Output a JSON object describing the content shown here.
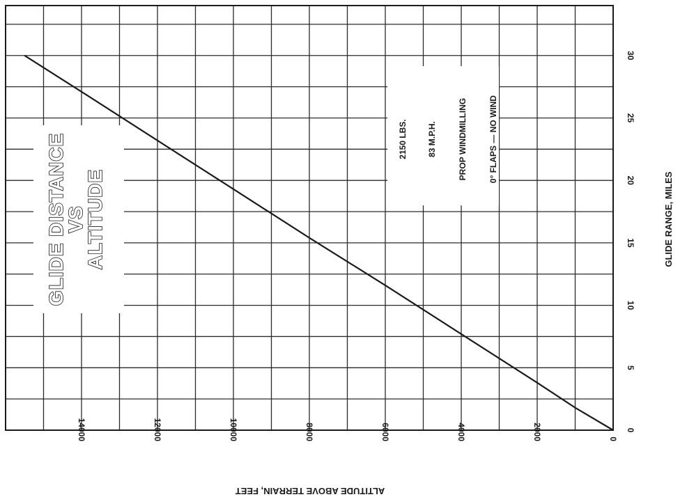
{
  "chart_data": {
    "type": "line",
    "title_lines": [
      "GLIDE DISTANCE",
      "VS",
      "ALTITUDE"
    ],
    "xlabel": "ALTITUDE ABOVE TERRAIN, FEET",
    "ylabel": "GLIDE RANGE, MILES",
    "xlim": [
      0,
      16000
    ],
    "ylim": [
      0,
      34
    ],
    "x_ticks": [
      0,
      2000,
      4000,
      6000,
      8000,
      10000,
      12000,
      14000
    ],
    "y_ticks": [
      0,
      5,
      10,
      15,
      20,
      25,
      30
    ],
    "grid": true,
    "conditions": [
      "2150 LBS.",
      "83 M.P.H.",
      "PROP WINDMILLING",
      "0° FLAPS — NO WIND"
    ],
    "series": [
      {
        "x": [
          0,
          1000,
          2000,
          4000,
          6000,
          8000,
          10000,
          12000,
          14000,
          15500
        ],
        "y": [
          0,
          1.8,
          3.8,
          7.7,
          11.6,
          15.4,
          19.3,
          23.2,
          27.1,
          30.0
        ]
      }
    ]
  }
}
